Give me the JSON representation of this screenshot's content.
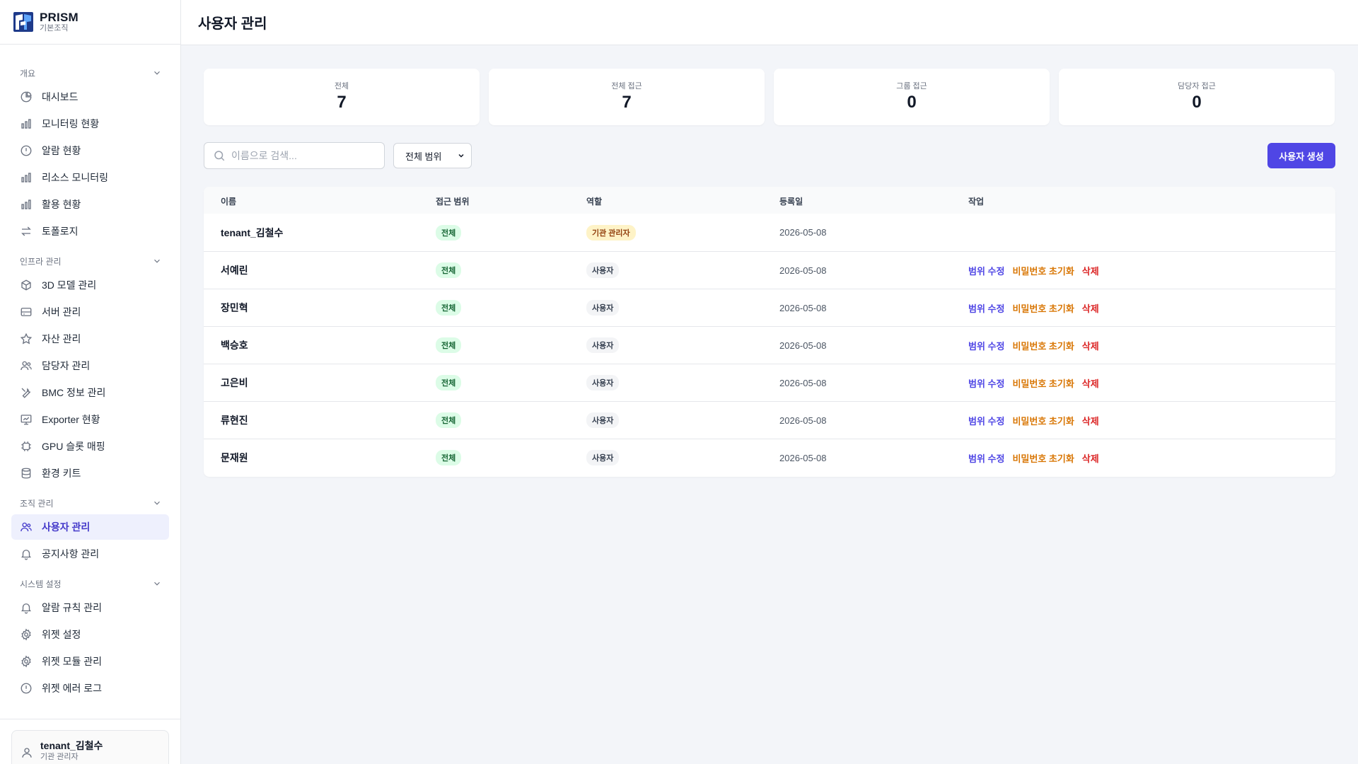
{
  "brand": {
    "name": "PRISM",
    "subtitle": "기본조직"
  },
  "sidebar": {
    "sections": [
      {
        "title": "개요",
        "items": [
          "대시보드",
          "모니터링 현황",
          "알람 현황",
          "리소스 모니터링",
          "활용 현황",
          "토폴로지"
        ]
      },
      {
        "title": "인프라 관리",
        "items": [
          "3D 모델 관리",
          "서버 관리",
          "자산 관리",
          "담당자 관리",
          "BMC 정보 관리",
          "Exporter 현황",
          "GPU 슬롯 매핑",
          "환경 키트"
        ]
      },
      {
        "title": "조직 관리",
        "items": [
          "사용자 관리",
          "공지사항 관리"
        ]
      },
      {
        "title": "시스템 설정",
        "items": [
          "알람 규칙 관리",
          "위젯 설정",
          "위젯 모듈 관리",
          "위젯 에러 로그"
        ]
      }
    ],
    "active_item": "사용자 관리",
    "user": {
      "name": "tenant_김철수",
      "role": "기관 관리자"
    }
  },
  "header": {
    "title": "사용자 관리"
  },
  "stats": [
    {
      "label": "전체",
      "value": "7"
    },
    {
      "label": "전체 접근",
      "value": "7"
    },
    {
      "label": "그룹 접근",
      "value": "0"
    },
    {
      "label": "담당자 접근",
      "value": "0"
    }
  ],
  "toolbar": {
    "search_placeholder": "이름으로 검색...",
    "filter_value": "전체 범위",
    "create_label": "사용자 생성"
  },
  "table": {
    "columns": [
      "이름",
      "접근 범위",
      "역할",
      "등록일",
      "작업"
    ],
    "actions": {
      "edit": "범위 수정",
      "reset": "비밀번호 초기화",
      "delete": "삭제"
    },
    "rows": [
      {
        "name": "tenant_김철수",
        "scope": "전체",
        "role": "기관 관리자",
        "date": "2026-05-08",
        "admin": true
      },
      {
        "name": "서예린",
        "scope": "전체",
        "role": "사용자",
        "date": "2026-05-08",
        "admin": false
      },
      {
        "name": "장민혁",
        "scope": "전체",
        "role": "사용자",
        "date": "2026-05-08",
        "admin": false
      },
      {
        "name": "백승호",
        "scope": "전체",
        "role": "사용자",
        "date": "2026-05-08",
        "admin": false
      },
      {
        "name": "고은비",
        "scope": "전체",
        "role": "사용자",
        "date": "2026-05-08",
        "admin": false
      },
      {
        "name": "류현진",
        "scope": "전체",
        "role": "사용자",
        "date": "2026-05-08",
        "admin": false
      },
      {
        "name": "문재원",
        "scope": "전체",
        "role": "사용자",
        "date": "2026-05-08",
        "admin": false
      }
    ]
  },
  "colors": {
    "accent": "#4f46e5",
    "reset": "#d97706",
    "delete": "#dc2626",
    "scope_badge": "#dcfce7",
    "admin_badge": "#fef3c7"
  }
}
